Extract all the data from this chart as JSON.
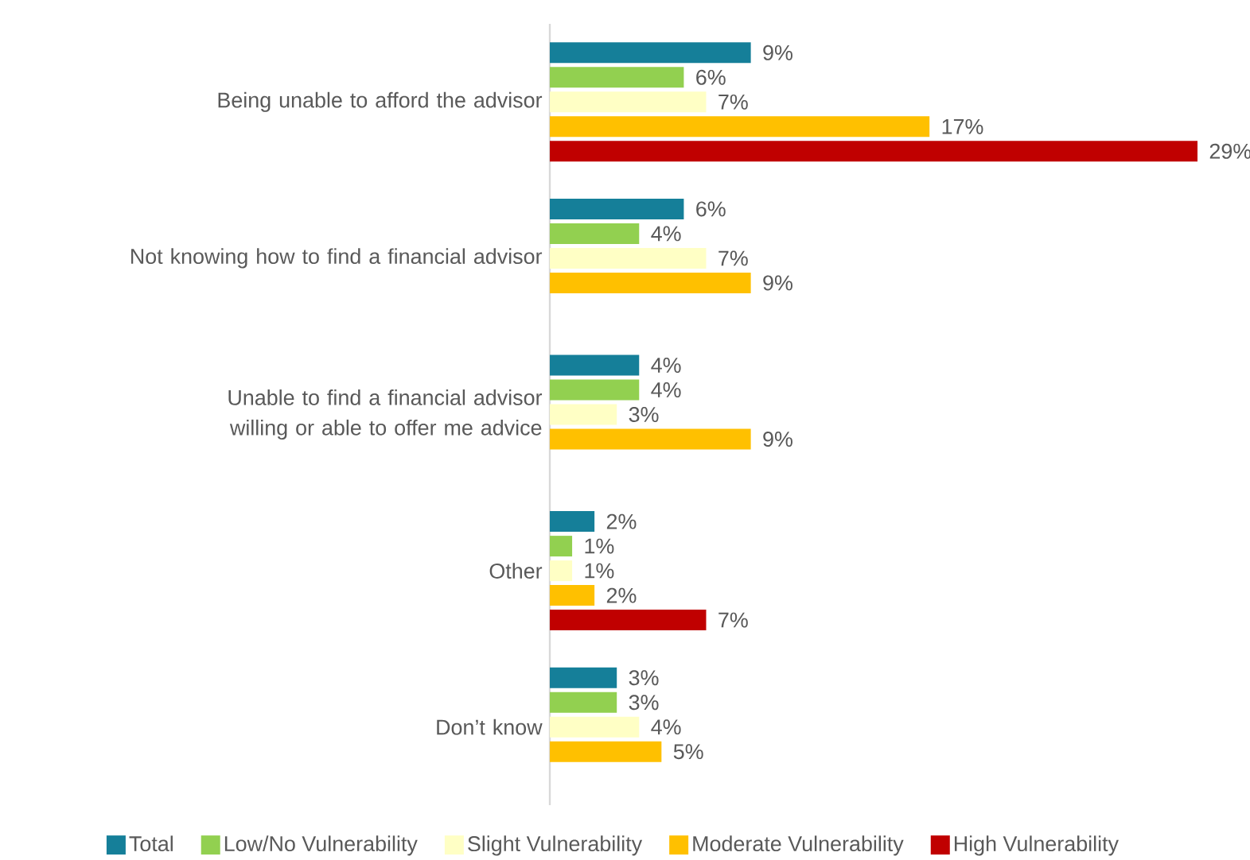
{
  "chart_data": {
    "type": "bar",
    "orientation": "horizontal",
    "categories": [
      "Being unable to afford the advisor",
      "Not knowing how to find a financial advisor",
      "Unable to find a financial advisor willing or able to offer me advice",
      "Other",
      "Don’t know"
    ],
    "series": [
      {
        "name": "Total",
        "color": "#157f99",
        "values": [
          9,
          6,
          4,
          2,
          3
        ],
        "value_labels": [
          "9%",
          "6%",
          "4%",
          "2%",
          "3%"
        ]
      },
      {
        "name": "Low/No Vulnerability",
        "color": "#92d050",
        "values": [
          6,
          4,
          4,
          1,
          3
        ],
        "value_labels": [
          "6%",
          "4%",
          "4%",
          "1%",
          "3%"
        ]
      },
      {
        "name": "Slight Vulnerability",
        "color": "#ffffc5",
        "values": [
          7,
          7,
          3,
          1,
          4
        ],
        "value_labels": [
          "7%",
          "7%",
          "3%",
          "1%",
          "4%"
        ]
      },
      {
        "name": "Moderate Vulnerability",
        "color": "#ffc000",
        "values": [
          17,
          9,
          9,
          2,
          5
        ],
        "value_labels": [
          "17%",
          "9%",
          "9%",
          "2%",
          "5%"
        ]
      },
      {
        "name": "High Vulnerability",
        "color": "#c00000",
        "values": [
          29,
          null,
          null,
          7,
          null
        ],
        "value_labels": [
          "29%",
          null,
          null,
          "7%",
          null
        ]
      }
    ],
    "xlim": [
      0,
      29
    ],
    "tick_labels": "y",
    "legend": "bottom"
  }
}
